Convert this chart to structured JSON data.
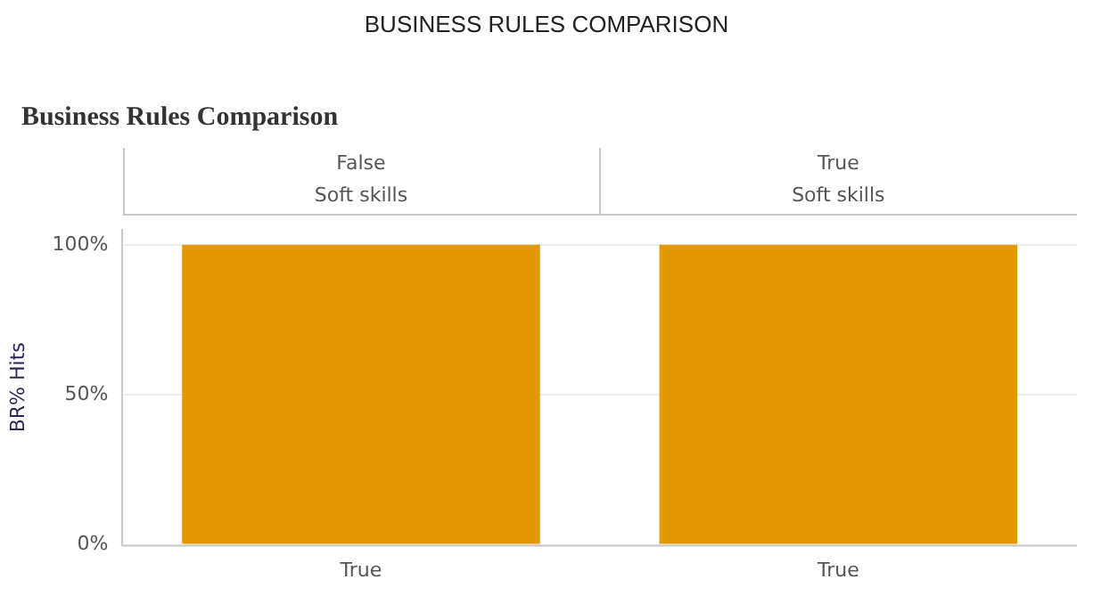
{
  "chart_data": {
    "type": "bar",
    "title": "BUSINESS RULES COMPARISON",
    "subtitle": "Business Rules Comparison",
    "ylabel": "BR% Hits",
    "categories": [
      "True",
      "True"
    ],
    "values": [
      100,
      100
    ],
    "color": "#e39800",
    "ylim": [
      0,
      105
    ],
    "yticks": [
      {
        "value": 0,
        "label": "0%"
      },
      {
        "value": 50,
        "label": "50%"
      },
      {
        "value": 100,
        "label": "100%"
      }
    ],
    "grid": "y",
    "legend": false,
    "annotations": [
      "False",
      "Soft skills",
      "True",
      "Soft skills"
    ]
  }
}
